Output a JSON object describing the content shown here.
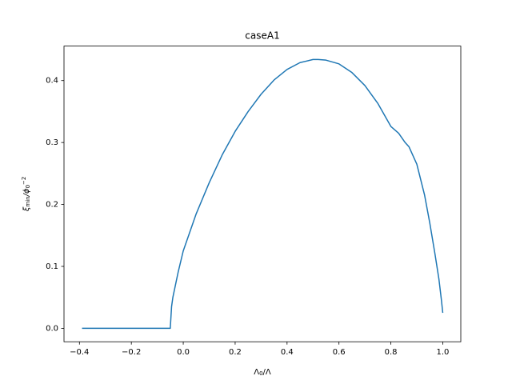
{
  "chart_data": {
    "type": "line",
    "title": "caseA1",
    "xlabel": [
      "Λ",
      "0",
      "/Λ"
    ],
    "ylabel": [
      "ξ",
      "min",
      "/ϕ",
      "0",
      "−2"
    ],
    "x": [
      -0.39,
      -0.05,
      -0.05,
      -0.045,
      -0.04,
      -0.03,
      -0.02,
      0,
      0.05,
      0.1,
      0.15,
      0.2,
      0.25,
      0.3,
      0.35,
      0.4,
      0.45,
      0.5,
      0.52,
      0.55,
      0.6,
      0.65,
      0.7,
      0.75,
      0.8,
      0.83,
      0.855,
      0.87,
      0.9,
      0.93,
      0.95,
      0.97,
      0.985,
      0.995,
      1.0
    ],
    "values": [
      0,
      0,
      0,
      0.035,
      0.05,
      0.07,
      0.09,
      0.125,
      0.185,
      0.235,
      0.28,
      0.318,
      0.35,
      0.378,
      0.401,
      0.418,
      0.429,
      0.434,
      0.434,
      0.433,
      0.427,
      0.413,
      0.392,
      0.363,
      0.326,
      0.315,
      0.3,
      0.293,
      0.265,
      0.215,
      0.17,
      0.12,
      0.08,
      0.045,
      0.025
    ],
    "color": "#1f77b4",
    "xlim": [
      -0.4595,
      1.0695
    ],
    "ylim": [
      -0.0217,
      0.4557
    ],
    "xticks": [
      {
        "value": -0.4,
        "label": "−0.4"
      },
      {
        "value": -0.2,
        "label": "−0.2"
      },
      {
        "value": 0,
        "label": "0.0"
      },
      0.2,
      0.4,
      0.6,
      0.8,
      {
        "value": 1,
        "label": "1.0"
      }
    ],
    "yticks": [
      {
        "value": 0,
        "label": "0.0"
      },
      0.1,
      0.2,
      0.3,
      0.4
    ],
    "grid": false
  }
}
